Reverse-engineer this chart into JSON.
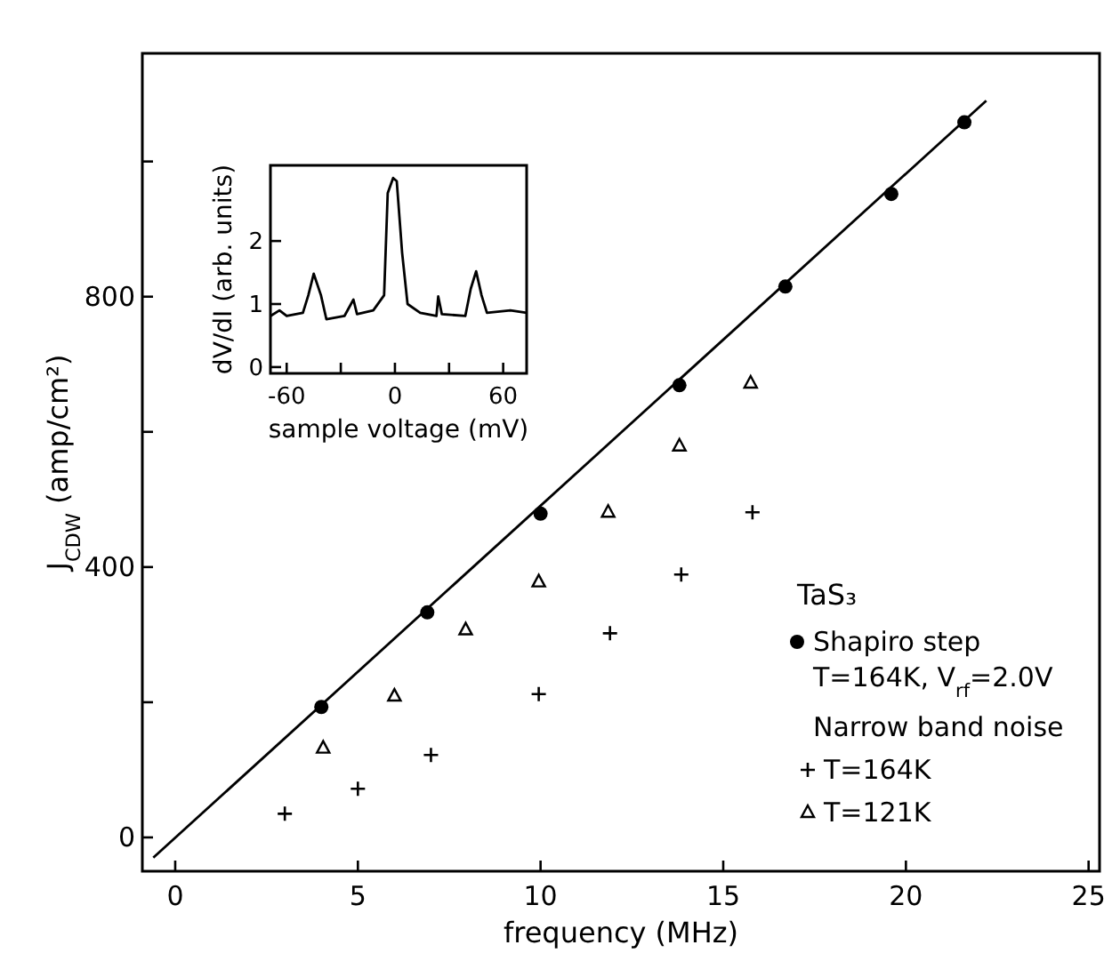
{
  "chart_data": [
    {
      "type": "scatter",
      "xlabel": "frequency (MHz)",
      "ylabel": "J$_{CDW}$ (amp/cm²)",
      "legend_title": "TaS₃",
      "legend": "right",
      "xlim": [
        -0.9,
        25.3
      ],
      "ylim": [
        -50,
        1160
      ],
      "xticks": [
        0,
        5,
        10,
        15,
        20,
        25
      ],
      "yticks": [
        0,
        {
          "value": 200,
          "label": null
        },
        400,
        {
          "value": 600,
          "label": null
        },
        800,
        {
          "value": 1000,
          "label": null
        }
      ],
      "annotations": [
        "Narrow band noise"
      ],
      "series": [
        {
          "name": "Shapiro step\nT=164K, V$_{rf}$=2.0V",
          "color": "#000000",
          "marker": "circle",
          "x": [
            4,
            6.9,
            10,
            13.8,
            16.7,
            19.6,
            21.6
          ],
          "values": [
            193,
            333,
            479,
            669,
            815,
            952,
            1058
          ]
        },
        {
          "type": "line",
          "color": "#000000",
          "marker": "none",
          "x": [
            -0.6,
            22.2
          ],
          "values": [
            -30,
            1090
          ]
        },
        {
          "name": "T=164K",
          "color": "#000000",
          "marker": "cross",
          "x": [
            3,
            5,
            7,
            9.95,
            11.9,
            13.85,
            15.8
          ],
          "values": [
            35,
            72,
            122,
            212,
            302,
            389,
            481
          ]
        },
        {
          "name": "T=121K",
          "color": "#000000",
          "marker": "triangle",
          "x": [
            4.05,
            6,
            7.95,
            9.95,
            11.85,
            13.8,
            15.75
          ],
          "values": [
            132,
            209,
            307,
            378,
            481,
            579,
            672
          ]
        }
      ]
    },
    {
      "type": "line",
      "xlabel": "sample voltage (mV)",
      "ylabel": "dV/dI (arb. units)",
      "xlim": [
        -69,
        73
      ],
      "ylim": [
        -0.1,
        3.2
      ],
      "xticks": [
        -60,
        {
          "value": -30,
          "label": null
        },
        0,
        {
          "value": 30,
          "label": null
        },
        60
      ],
      "yticks": [
        0,
        1,
        2
      ],
      "series": [
        {
          "color": "#000000",
          "x": [
            -69,
            -64,
            -60,
            -51,
            -48,
            -45,
            -41,
            -38,
            -28,
            -23,
            -21,
            -12,
            -6,
            -4,
            -1,
            1,
            4,
            7,
            14,
            23,
            24,
            26,
            39,
            42,
            45,
            48,
            51,
            64,
            73
          ],
          "values": [
            0.81,
            0.9,
            0.81,
            0.86,
            1.14,
            1.48,
            1.14,
            0.76,
            0.81,
            1.07,
            0.84,
            0.9,
            1.14,
            2.76,
            3.0,
            2.95,
            1.81,
            1.0,
            0.86,
            0.81,
            1.12,
            0.84,
            0.81,
            1.24,
            1.52,
            1.14,
            0.86,
            0.9,
            0.86
          ]
        }
      ]
    }
  ]
}
